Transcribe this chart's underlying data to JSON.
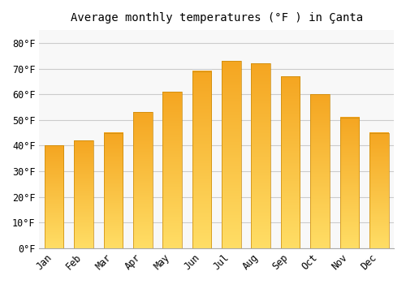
{
  "title": "Average monthly temperatures (°F ) in Çanta",
  "months": [
    "Jan",
    "Feb",
    "Mar",
    "Apr",
    "May",
    "Jun",
    "Jul",
    "Aug",
    "Sep",
    "Oct",
    "Nov",
    "Dec"
  ],
  "values": [
    40,
    42,
    45,
    53,
    61,
    69,
    73,
    72,
    67,
    60,
    51,
    45
  ],
  "bar_color": "#F5A623",
  "bar_edge_color": "#C8880A",
  "ylim": [
    0,
    85
  ],
  "yticks": [
    0,
    10,
    20,
    30,
    40,
    50,
    60,
    70,
    80
  ],
  "ylabel_suffix": "°F",
  "background_color": "#FFFFFF",
  "plot_bg_color": "#F8F8F8",
  "grid_color": "#CCCCCC",
  "title_fontsize": 10,
  "tick_fontsize": 8.5,
  "font_family": "monospace"
}
